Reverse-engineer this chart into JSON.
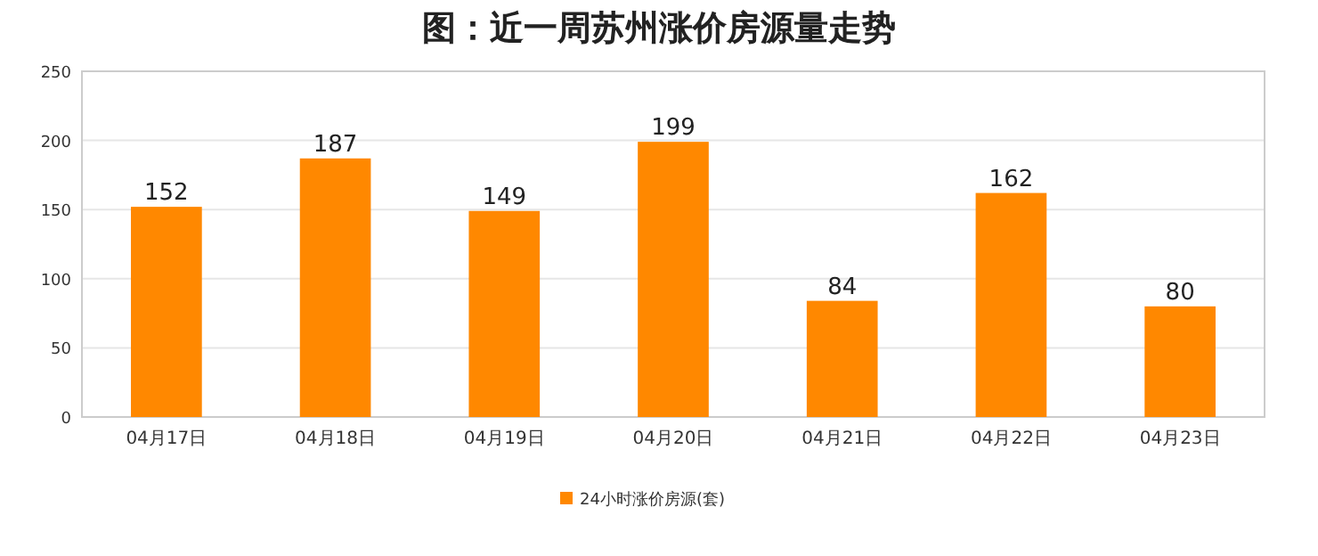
{
  "chart_data": {
    "type": "bar",
    "title": "图：近一周苏州涨价房源量走势",
    "categories": [
      "04月17日",
      "04月18日",
      "04月19日",
      "04月20日",
      "04月21日",
      "04月22日",
      "04月23日"
    ],
    "series": [
      {
        "name": "24小时涨价房源(套)",
        "color": "#ff8800",
        "values": [
          152,
          187,
          149,
          199,
          84,
          162,
          80
        ]
      }
    ],
    "ylim": [
      0,
      250
    ],
    "yticks": [
      0,
      50,
      100,
      150,
      200,
      250
    ],
    "grid": "y",
    "legend": "bottom",
    "data_labels": true
  }
}
